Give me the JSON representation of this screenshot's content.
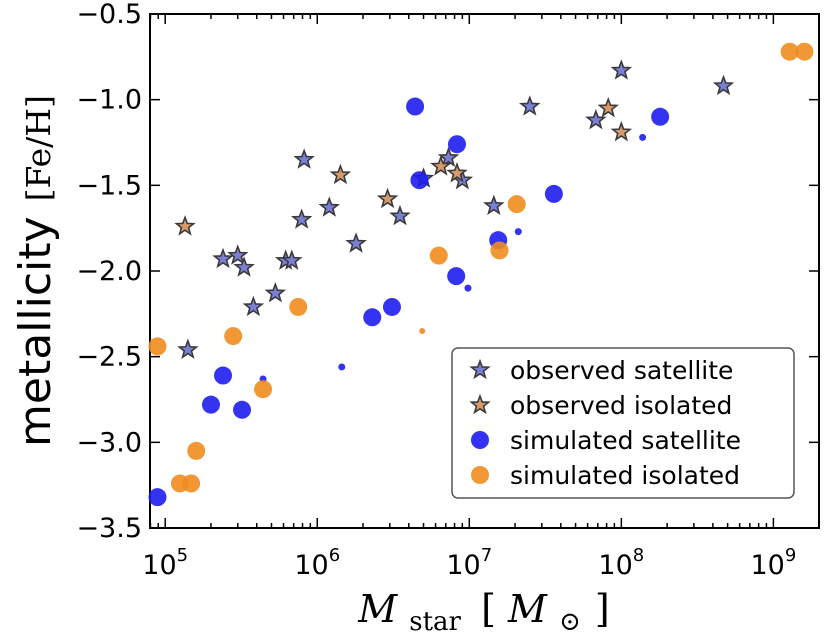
{
  "chart_data": {
    "type": "scatter",
    "title": "",
    "xlabel_main": "M",
    "xlabel_sub": "star",
    "xlabel_unit_open": "[",
    "xlabel_unit_symbol": "M",
    "xlabel_unit_sub": "⊙",
    "xlabel_unit_close": "]",
    "ylabel_word": "metallicity",
    "ylabel_unit": "[Fe/H]",
    "xscale": "log",
    "xlim_log10": [
      4.9,
      9.3
    ],
    "ylim": [
      -3.5,
      -0.5
    ],
    "x_ticks": [
      {
        "base": "10",
        "exp": "5",
        "log10": 5
      },
      {
        "base": "10",
        "exp": "6",
        "log10": 6
      },
      {
        "base": "10",
        "exp": "7",
        "log10": 7
      },
      {
        "base": "10",
        "exp": "8",
        "log10": 8
      },
      {
        "base": "10",
        "exp": "9",
        "log10": 9
      }
    ],
    "y_ticks": [
      {
        "label": "−3.5",
        "value": -3.5
      },
      {
        "label": "−3.0",
        "value": -3.0
      },
      {
        "label": "−2.5",
        "value": -2.5
      },
      {
        "label": "−2.0",
        "value": -2.0
      },
      {
        "label": "−1.5",
        "value": -1.5
      },
      {
        "label": "−1.0",
        "value": -1.0
      },
      {
        "label": "−0.5",
        "value": -0.5
      }
    ],
    "grid": false,
    "legend_position": "lower-right",
    "series": [
      {
        "name": "observed satellite",
        "marker": "star",
        "color": "#7b7fd6",
        "edge": "#3a3a3a",
        "points": [
          [
            141000.0,
            -2.46
          ],
          [
            240000.0,
            -1.93
          ],
          [
            300000.0,
            -1.91
          ],
          [
            330000.0,
            -1.98
          ],
          [
            380000.0,
            -2.21
          ],
          [
            530000.0,
            -2.13
          ],
          [
            620000.0,
            -1.94
          ],
          [
            680000.0,
            -1.94
          ],
          [
            790000.0,
            -1.7
          ],
          [
            820000.0,
            -1.35
          ],
          [
            1200000.0,
            -1.63
          ],
          [
            1800000.0,
            -1.84
          ],
          [
            3500000.0,
            -1.68
          ],
          [
            5000000.0,
            -1.46
          ],
          [
            7300000.0,
            -1.34
          ],
          [
            9000000.0,
            -1.47
          ],
          [
            14500000.0,
            -1.62
          ],
          [
            25000000.0,
            -1.04
          ],
          [
            68000000.0,
            -1.12
          ],
          [
            100000000.0,
            -0.83
          ],
          [
            470000000.0,
            -0.92
          ]
        ]
      },
      {
        "name": "observed isolated",
        "marker": "star",
        "color": "#d69a6c",
        "edge": "#3a3a3a",
        "points": [
          [
            135000.0,
            -1.74
          ],
          [
            1420000.0,
            -1.44
          ],
          [
            2900000.0,
            -1.58
          ],
          [
            6500000.0,
            -1.39
          ],
          [
            8300000.0,
            -1.43
          ],
          [
            82000000.0,
            -1.05
          ],
          [
            100000000.0,
            -1.19
          ]
        ]
      },
      {
        "name": "simulated satellite",
        "marker": "circle",
        "color": "#1d1df0",
        "sizes": true,
        "points": [
          [
            89000.0,
            -3.32,
            9
          ],
          [
            200000.0,
            -2.78,
            9
          ],
          [
            240000.0,
            -2.61,
            9
          ],
          [
            320000.0,
            -2.81,
            9
          ],
          [
            440000.0,
            -2.63,
            3.5
          ],
          [
            1450000.0,
            -2.56,
            3.5
          ],
          [
            2300000.0,
            -2.27,
            9
          ],
          [
            3100000.0,
            -2.21,
            9
          ],
          [
            4400000.0,
            -1.04,
            9
          ],
          [
            4700000.0,
            -1.47,
            9
          ],
          [
            8300000.0,
            -1.26,
            9
          ],
          [
            8200000.0,
            -2.03,
            9
          ],
          [
            9800000.0,
            -2.1,
            3.5
          ],
          [
            15500000.0,
            -1.82,
            9
          ],
          [
            21000000.0,
            -1.77,
            3.5
          ],
          [
            36000000.0,
            -1.55,
            9
          ],
          [
            138000000.0,
            -1.22,
            3.5
          ],
          [
            180000000.0,
            -1.1,
            9
          ]
        ]
      },
      {
        "name": "simulated isolated",
        "marker": "circle",
        "color": "#f08c1e",
        "sizes": true,
        "points": [
          [
            89000.0,
            -2.44,
            9
          ],
          [
            125000.0,
            -3.24,
            9
          ],
          [
            148000.0,
            -3.24,
            9
          ],
          [
            160000.0,
            -3.05,
            9
          ],
          [
            280000.0,
            -2.38,
            9
          ],
          [
            440000.0,
            -2.69,
            9
          ],
          [
            750000.0,
            -2.21,
            9
          ],
          [
            4900000.0,
            -2.35,
            3
          ],
          [
            6300000.0,
            -1.91,
            9
          ],
          [
            15800000.0,
            -1.88,
            9
          ],
          [
            20500000.0,
            -1.61,
            9
          ],
          [
            1280000000.0,
            -0.72,
            9
          ],
          [
            1600000000.0,
            -0.72,
            9
          ]
        ]
      }
    ]
  }
}
